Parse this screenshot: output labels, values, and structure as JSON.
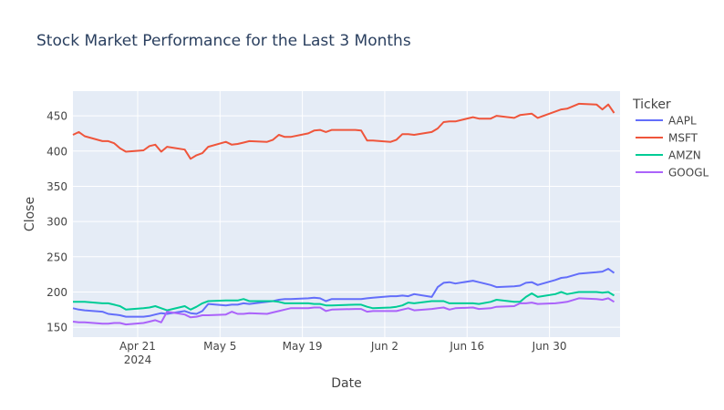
{
  "chart_data": {
    "type": "line",
    "title": "Stock Market Performance for the Last 3 Months",
    "xlabel": "Date",
    "ylabel": "Close",
    "legend_title": "Ticker",
    "legend_position": "right",
    "grid": true,
    "xlim": [
      "2024-04-10",
      "2024-07-12"
    ],
    "ylim": [
      136,
      485
    ],
    "x_ticks": [
      {
        "date": "2024-04-21",
        "label": "Apr 21",
        "sub": "2024"
      },
      {
        "date": "2024-05-05",
        "label": "May 5",
        "sub": ""
      },
      {
        "date": "2024-05-19",
        "label": "May 19",
        "sub": ""
      },
      {
        "date": "2024-06-02",
        "label": "Jun 2",
        "sub": ""
      },
      {
        "date": "2024-06-16",
        "label": "Jun 16",
        "sub": ""
      },
      {
        "date": "2024-06-30",
        "label": "Jun 30",
        "sub": ""
      }
    ],
    "y_ticks": [
      150,
      200,
      250,
      300,
      350,
      400,
      450
    ],
    "colors": {
      "plot_bg": "#e5ecf6",
      "grid": "#ffffff",
      "text": "#444444",
      "title": "#2a3f5f"
    },
    "series": [
      {
        "name": "AAPL",
        "color": "#636efa",
        "points": [
          [
            "2024-04-10",
            177
          ],
          [
            "2024-04-11",
            175
          ],
          [
            "2024-04-12",
            174
          ],
          [
            "2024-04-15",
            172
          ],
          [
            "2024-04-16",
            169
          ],
          [
            "2024-04-17",
            168
          ],
          [
            "2024-04-18",
            167
          ],
          [
            "2024-04-19",
            165
          ],
          [
            "2024-04-22",
            165
          ],
          [
            "2024-04-23",
            166
          ],
          [
            "2024-04-24",
            168
          ],
          [
            "2024-04-25",
            170
          ],
          [
            "2024-04-26",
            169
          ],
          [
            "2024-04-29",
            173
          ],
          [
            "2024-04-30",
            170
          ],
          [
            "2024-05-01",
            169
          ],
          [
            "2024-05-02",
            173
          ],
          [
            "2024-05-03",
            183
          ],
          [
            "2024-05-06",
            181
          ],
          [
            "2024-05-07",
            182
          ],
          [
            "2024-05-08",
            182
          ],
          [
            "2024-05-09",
            184
          ],
          [
            "2024-05-10",
            183
          ],
          [
            "2024-05-13",
            186
          ],
          [
            "2024-05-14",
            187
          ],
          [
            "2024-05-15",
            189
          ],
          [
            "2024-05-16",
            190
          ],
          [
            "2024-05-17",
            190
          ],
          [
            "2024-05-20",
            191
          ],
          [
            "2024-05-21",
            192
          ],
          [
            "2024-05-22",
            191
          ],
          [
            "2024-05-23",
            187
          ],
          [
            "2024-05-24",
            190
          ],
          [
            "2024-05-28",
            190
          ],
          [
            "2024-05-29",
            190
          ],
          [
            "2024-05-30",
            191
          ],
          [
            "2024-05-31",
            192
          ],
          [
            "2024-06-03",
            194
          ],
          [
            "2024-06-04",
            194
          ],
          [
            "2024-06-05",
            195
          ],
          [
            "2024-06-06",
            194
          ],
          [
            "2024-06-07",
            197
          ],
          [
            "2024-06-10",
            193
          ],
          [
            "2024-06-11",
            207
          ],
          [
            "2024-06-12",
            213
          ],
          [
            "2024-06-13",
            214
          ],
          [
            "2024-06-14",
            212
          ],
          [
            "2024-06-17",
            216
          ],
          [
            "2024-06-18",
            214
          ],
          [
            "2024-06-20",
            210
          ],
          [
            "2024-06-21",
            207
          ],
          [
            "2024-06-24",
            208
          ],
          [
            "2024-06-25",
            209
          ],
          [
            "2024-06-26",
            213
          ],
          [
            "2024-06-27",
            214
          ],
          [
            "2024-06-28",
            210
          ],
          [
            "2024-07-01",
            217
          ],
          [
            "2024-07-02",
            220
          ],
          [
            "2024-07-03",
            221
          ],
          [
            "2024-07-05",
            226
          ],
          [
            "2024-07-08",
            228
          ],
          [
            "2024-07-09",
            229
          ],
          [
            "2024-07-10",
            233
          ],
          [
            "2024-07-11",
            227
          ]
        ]
      },
      {
        "name": "MSFT",
        "color": "#ef553b",
        "points": [
          [
            "2024-04-10",
            423
          ],
          [
            "2024-04-11",
            427
          ],
          [
            "2024-04-12",
            421
          ],
          [
            "2024-04-15",
            414
          ],
          [
            "2024-04-16",
            414
          ],
          [
            "2024-04-17",
            411
          ],
          [
            "2024-04-18",
            404
          ],
          [
            "2024-04-19",
            399
          ],
          [
            "2024-04-22",
            401
          ],
          [
            "2024-04-23",
            407
          ],
          [
            "2024-04-24",
            409
          ],
          [
            "2024-04-25",
            399
          ],
          [
            "2024-04-26",
            406
          ],
          [
            "2024-04-29",
            402
          ],
          [
            "2024-04-30",
            389
          ],
          [
            "2024-05-01",
            394
          ],
          [
            "2024-05-02",
            397
          ],
          [
            "2024-05-03",
            406
          ],
          [
            "2024-05-06",
            413
          ],
          [
            "2024-05-07",
            409
          ],
          [
            "2024-05-08",
            410
          ],
          [
            "2024-05-09",
            412
          ],
          [
            "2024-05-10",
            414
          ],
          [
            "2024-05-13",
            413
          ],
          [
            "2024-05-14",
            416
          ],
          [
            "2024-05-15",
            423
          ],
          [
            "2024-05-16",
            420
          ],
          [
            "2024-05-17",
            420
          ],
          [
            "2024-05-20",
            425
          ],
          [
            "2024-05-21",
            429
          ],
          [
            "2024-05-22",
            430
          ],
          [
            "2024-05-23",
            427
          ],
          [
            "2024-05-24",
            430
          ],
          [
            "2024-05-28",
            430
          ],
          [
            "2024-05-29",
            429
          ],
          [
            "2024-05-30",
            415
          ],
          [
            "2024-05-31",
            415
          ],
          [
            "2024-06-03",
            413
          ],
          [
            "2024-06-04",
            416
          ],
          [
            "2024-06-05",
            424
          ],
          [
            "2024-06-06",
            424
          ],
          [
            "2024-06-07",
            423
          ],
          [
            "2024-06-10",
            427
          ],
          [
            "2024-06-11",
            432
          ],
          [
            "2024-06-12",
            441
          ],
          [
            "2024-06-13",
            442
          ],
          [
            "2024-06-14",
            442
          ],
          [
            "2024-06-17",
            448
          ],
          [
            "2024-06-18",
            446
          ],
          [
            "2024-06-20",
            446
          ],
          [
            "2024-06-21",
            450
          ],
          [
            "2024-06-24",
            447
          ],
          [
            "2024-06-25",
            451
          ],
          [
            "2024-06-26",
            452
          ],
          [
            "2024-06-27",
            453
          ],
          [
            "2024-06-28",
            447
          ],
          [
            "2024-07-01",
            456
          ],
          [
            "2024-07-02",
            459
          ],
          [
            "2024-07-03",
            460
          ],
          [
            "2024-07-05",
            467
          ],
          [
            "2024-07-08",
            466
          ],
          [
            "2024-07-09",
            459
          ],
          [
            "2024-07-10",
            466
          ],
          [
            "2024-07-11",
            454
          ]
        ]
      },
      {
        "name": "AMZN",
        "color": "#00cc96",
        "points": [
          [
            "2024-04-10",
            186
          ],
          [
            "2024-04-11",
            186
          ],
          [
            "2024-04-12",
            186
          ],
          [
            "2024-04-15",
            184
          ],
          [
            "2024-04-16",
            184
          ],
          [
            "2024-04-17",
            182
          ],
          [
            "2024-04-18",
            180
          ],
          [
            "2024-04-19",
            175
          ],
          [
            "2024-04-22",
            177
          ],
          [
            "2024-04-23",
            178
          ],
          [
            "2024-04-24",
            180
          ],
          [
            "2024-04-25",
            177
          ],
          [
            "2024-04-26",
            174
          ],
          [
            "2024-04-29",
            180
          ],
          [
            "2024-04-30",
            175
          ],
          [
            "2024-05-01",
            179
          ],
          [
            "2024-05-02",
            184
          ],
          [
            "2024-05-03",
            187
          ],
          [
            "2024-05-06",
            188
          ],
          [
            "2024-05-07",
            188
          ],
          [
            "2024-05-08",
            188
          ],
          [
            "2024-05-09",
            190
          ],
          [
            "2024-05-10",
            187
          ],
          [
            "2024-05-13",
            187
          ],
          [
            "2024-05-14",
            187
          ],
          [
            "2024-05-15",
            186
          ],
          [
            "2024-05-16",
            184
          ],
          [
            "2024-05-17",
            184
          ],
          [
            "2024-05-20",
            184
          ],
          [
            "2024-05-21",
            183
          ],
          [
            "2024-05-22",
            183
          ],
          [
            "2024-05-23",
            181
          ],
          [
            "2024-05-24",
            181
          ],
          [
            "2024-05-28",
            182
          ],
          [
            "2024-05-29",
            182
          ],
          [
            "2024-05-30",
            179
          ],
          [
            "2024-05-31",
            177
          ],
          [
            "2024-06-03",
            178
          ],
          [
            "2024-06-04",
            179
          ],
          [
            "2024-06-05",
            181
          ],
          [
            "2024-06-06",
            185
          ],
          [
            "2024-06-07",
            184
          ],
          [
            "2024-06-10",
            187
          ],
          [
            "2024-06-11",
            187
          ],
          [
            "2024-06-12",
            187
          ],
          [
            "2024-06-13",
            184
          ],
          [
            "2024-06-14",
            184
          ],
          [
            "2024-06-17",
            184
          ],
          [
            "2024-06-18",
            183
          ],
          [
            "2024-06-20",
            186
          ],
          [
            "2024-06-21",
            189
          ],
          [
            "2024-06-24",
            186
          ],
          [
            "2024-06-25",
            186
          ],
          [
            "2024-06-26",
            193
          ],
          [
            "2024-06-27",
            198
          ],
          [
            "2024-06-28",
            193
          ],
          [
            "2024-07-01",
            197
          ],
          [
            "2024-07-02",
            200
          ],
          [
            "2024-07-03",
            197
          ],
          [
            "2024-07-05",
            200
          ],
          [
            "2024-07-08",
            200
          ],
          [
            "2024-07-09",
            199
          ],
          [
            "2024-07-10",
            200
          ],
          [
            "2024-07-11",
            195
          ]
        ]
      },
      {
        "name": "GOOGL",
        "color": "#ab63fa",
        "points": [
          [
            "2024-04-10",
            158
          ],
          [
            "2024-04-11",
            157
          ],
          [
            "2024-04-12",
            157
          ],
          [
            "2024-04-15",
            155
          ],
          [
            "2024-04-16",
            155
          ],
          [
            "2024-04-17",
            156
          ],
          [
            "2024-04-18",
            156
          ],
          [
            "2024-04-19",
            154
          ],
          [
            "2024-04-22",
            156
          ],
          [
            "2024-04-23",
            158
          ],
          [
            "2024-04-24",
            160
          ],
          [
            "2024-04-25",
            157
          ],
          [
            "2024-04-26",
            172
          ],
          [
            "2024-04-29",
            168
          ],
          [
            "2024-04-30",
            164
          ],
          [
            "2024-05-01",
            165
          ],
          [
            "2024-05-02",
            167
          ],
          [
            "2024-05-03",
            167
          ],
          [
            "2024-05-06",
            168
          ],
          [
            "2024-05-07",
            172
          ],
          [
            "2024-05-08",
            169
          ],
          [
            "2024-05-09",
            169
          ],
          [
            "2024-05-10",
            170
          ],
          [
            "2024-05-13",
            169
          ],
          [
            "2024-05-14",
            171
          ],
          [
            "2024-05-15",
            173
          ],
          [
            "2024-05-16",
            175
          ],
          [
            "2024-05-17",
            177
          ],
          [
            "2024-05-20",
            177
          ],
          [
            "2024-05-21",
            178
          ],
          [
            "2024-05-22",
            178
          ],
          [
            "2024-05-23",
            173
          ],
          [
            "2024-05-24",
            175
          ],
          [
            "2024-05-28",
            176
          ],
          [
            "2024-05-29",
            176
          ],
          [
            "2024-05-30",
            172
          ],
          [
            "2024-05-31",
            173
          ],
          [
            "2024-06-03",
            173
          ],
          [
            "2024-06-04",
            173
          ],
          [
            "2024-06-05",
            175
          ],
          [
            "2024-06-06",
            177
          ],
          [
            "2024-06-07",
            174
          ],
          [
            "2024-06-10",
            176
          ],
          [
            "2024-06-11",
            177
          ],
          [
            "2024-06-12",
            178
          ],
          [
            "2024-06-13",
            175
          ],
          [
            "2024-06-14",
            177
          ],
          [
            "2024-06-17",
            178
          ],
          [
            "2024-06-18",
            176
          ],
          [
            "2024-06-20",
            177
          ],
          [
            "2024-06-21",
            179
          ],
          [
            "2024-06-24",
            180
          ],
          [
            "2024-06-25",
            184
          ],
          [
            "2024-06-26",
            184
          ],
          [
            "2024-06-27",
            185
          ],
          [
            "2024-06-28",
            183
          ],
          [
            "2024-07-01",
            184
          ],
          [
            "2024-07-02",
            185
          ],
          [
            "2024-07-03",
            186
          ],
          [
            "2024-07-05",
            191
          ],
          [
            "2024-07-08",
            190
          ],
          [
            "2024-07-09",
            189
          ],
          [
            "2024-07-10",
            191
          ],
          [
            "2024-07-11",
            186
          ]
        ]
      }
    ]
  }
}
